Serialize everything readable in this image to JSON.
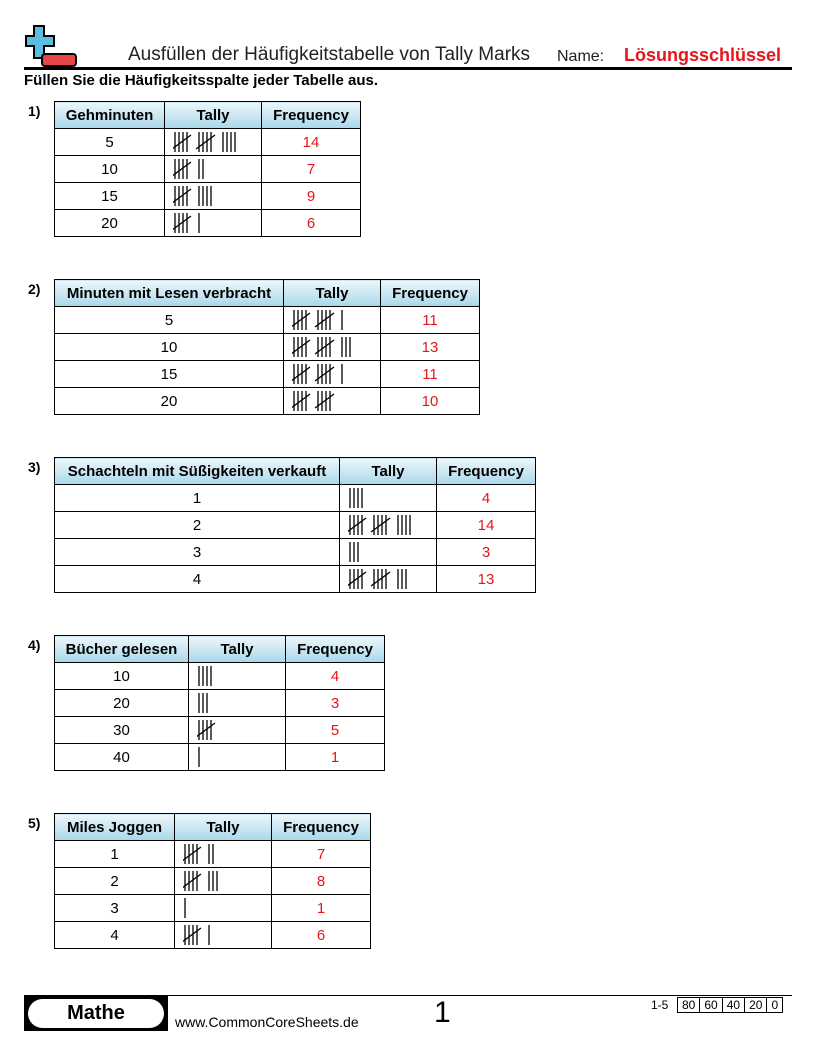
{
  "header": {
    "title": "Ausfüllen der Häufigkeitstabelle von Tally Marks",
    "name_label": "Name:",
    "name_value": "Lösungsschlüssel",
    "instructions": "Füllen Sie die Häufigkeitsspalte jeder Tabelle aus."
  },
  "colors": {
    "accent_red": "#e8141c",
    "logo_blue": "#5bbde0",
    "header_gradient": "#a9d7ea"
  },
  "problems": [
    {
      "num": "1)",
      "headers": [
        "Gehminuten",
        "Tally",
        "Frequency"
      ],
      "rows": [
        {
          "value": "5",
          "tally": 14,
          "frequency": "14"
        },
        {
          "value": "10",
          "tally": 7,
          "frequency": "7"
        },
        {
          "value": "15",
          "tally": 9,
          "frequency": "9"
        },
        {
          "value": "20",
          "tally": 6,
          "frequency": "6"
        }
      ]
    },
    {
      "num": "2)",
      "headers": [
        "Minuten mit Lesen verbracht",
        "Tally",
        "Frequency"
      ],
      "rows": [
        {
          "value": "5",
          "tally": 11,
          "frequency": "11"
        },
        {
          "value": "10",
          "tally": 13,
          "frequency": "13"
        },
        {
          "value": "15",
          "tally": 11,
          "frequency": "11"
        },
        {
          "value": "20",
          "tally": 10,
          "frequency": "10"
        }
      ]
    },
    {
      "num": "3)",
      "headers": [
        "Schachteln mit Süßigkeiten verkauft",
        "Tally",
        "Frequency"
      ],
      "rows": [
        {
          "value": "1",
          "tally": 4,
          "frequency": "4"
        },
        {
          "value": "2",
          "tally": 14,
          "frequency": "14"
        },
        {
          "value": "3",
          "tally": 3,
          "frequency": "3"
        },
        {
          "value": "4",
          "tally": 13,
          "frequency": "13"
        }
      ]
    },
    {
      "num": "4)",
      "headers": [
        "Bücher gelesen",
        "Tally",
        "Frequency"
      ],
      "rows": [
        {
          "value": "10",
          "tally": 4,
          "frequency": "4"
        },
        {
          "value": "20",
          "tally": 3,
          "frequency": "3"
        },
        {
          "value": "30",
          "tally": 5,
          "frequency": "5"
        },
        {
          "value": "40",
          "tally": 1,
          "frequency": "1"
        }
      ]
    },
    {
      "num": "5)",
      "headers": [
        "Miles Joggen",
        "Tally",
        "Frequency"
      ],
      "rows": [
        {
          "value": "1",
          "tally": 7,
          "frequency": "7"
        },
        {
          "value": "2",
          "tally": 8,
          "frequency": "8"
        },
        {
          "value": "3",
          "tally": 1,
          "frequency": "1"
        },
        {
          "value": "4",
          "tally": 6,
          "frequency": "6"
        }
      ]
    }
  ],
  "footer": {
    "brand": "Mathe",
    "url": "www.CommonCoreSheets.de",
    "page": "1",
    "range": "1-5",
    "scores": [
      "80",
      "60",
      "40",
      "20",
      "0"
    ]
  }
}
